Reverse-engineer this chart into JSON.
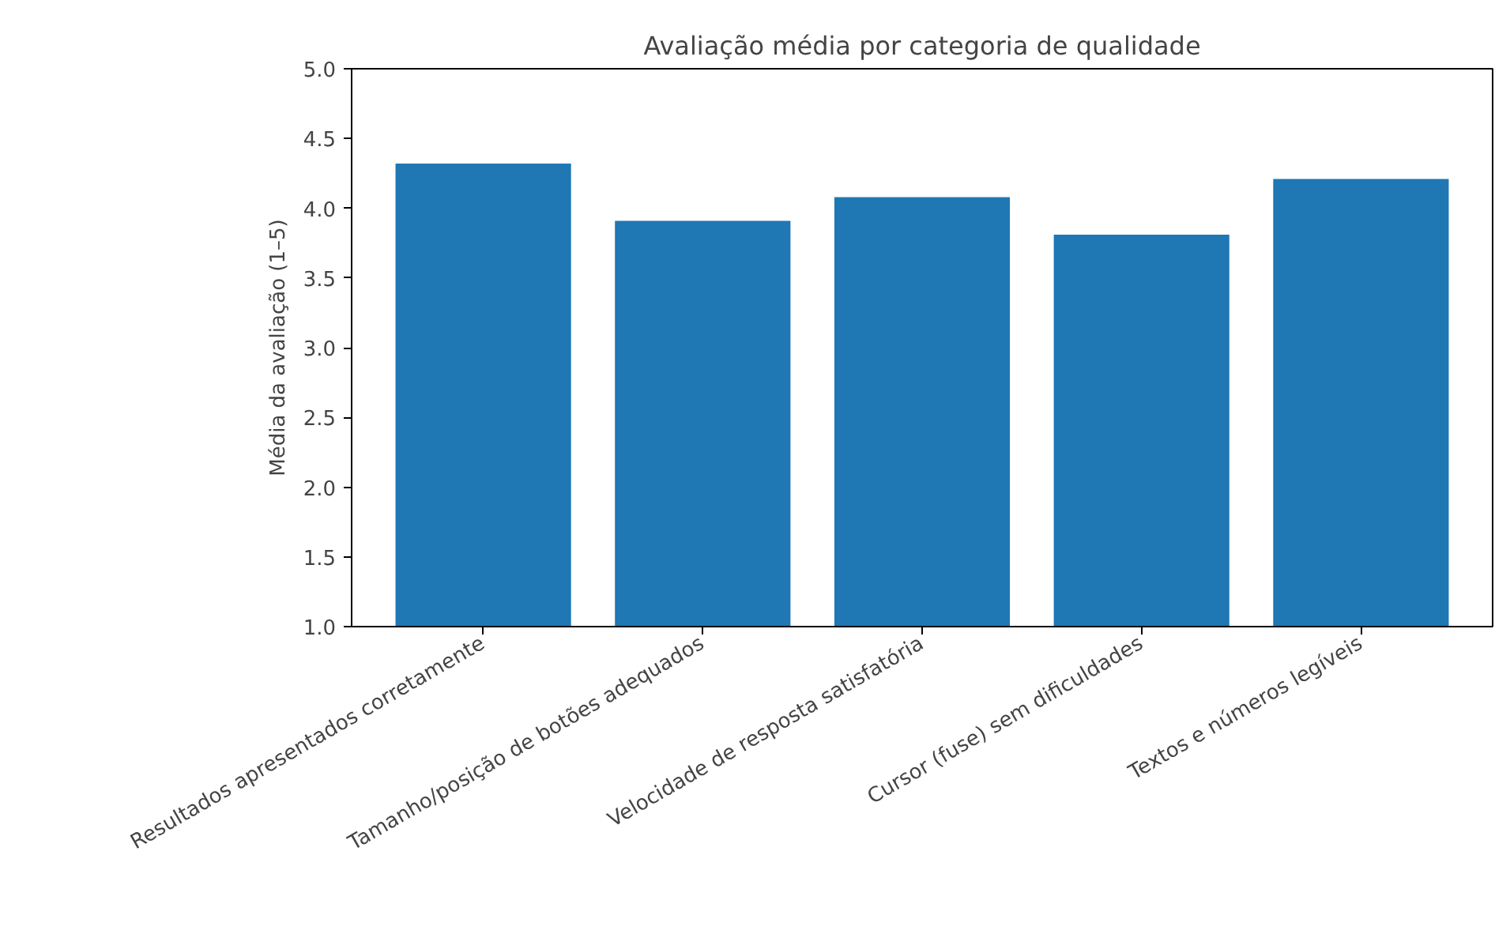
{
  "chart_data": {
    "type": "bar",
    "title": "Avaliação média por categoria de qualidade",
    "ylabel": "Média da avaliação (1–5)",
    "categories": [
      "Resultados apresentados corretamente",
      "Tamanho/posição de botões adequados",
      "Velocidade de resposta satisfatória",
      "Cursor (fuse) sem dificuldades",
      "Textos e números legíveis"
    ],
    "values": [
      4.32,
      3.91,
      4.08,
      3.81,
      4.21
    ],
    "color": "#1f77b4",
    "ylim": [
      1.0,
      5.0
    ],
    "yticks": [
      {
        "value": 1.0,
        "label": "1.0"
      },
      {
        "value": 1.5,
        "label": "1.5"
      },
      {
        "value": 2.0,
        "label": "2.0"
      },
      {
        "value": 2.5,
        "label": "2.5"
      },
      {
        "value": 3.0,
        "label": "3.0"
      },
      {
        "value": 3.5,
        "label": "3.5"
      },
      {
        "value": 4.0,
        "label": "4.0"
      },
      {
        "value": 4.5,
        "label": "4.5"
      },
      {
        "value": 5.0,
        "label": "5.0"
      }
    ],
    "grid": false
  }
}
